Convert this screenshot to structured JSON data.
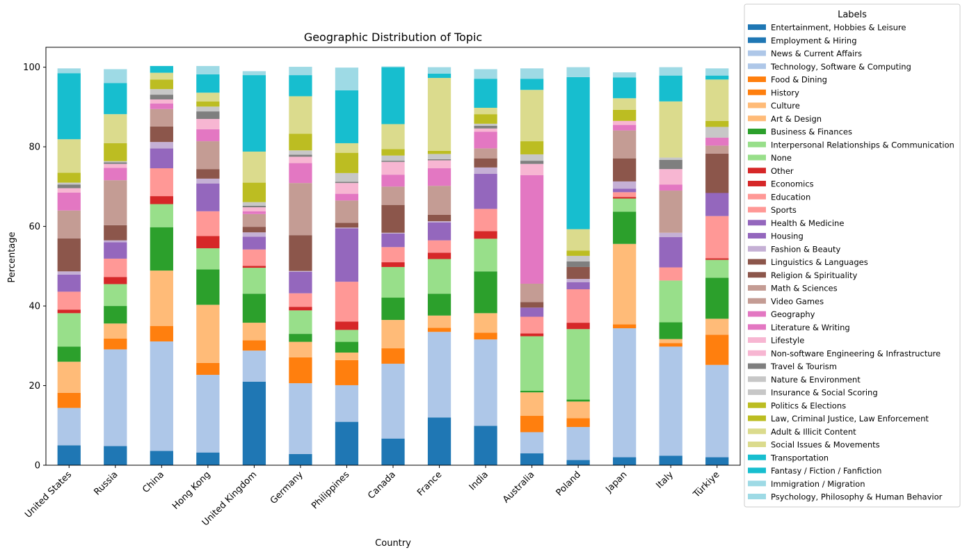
{
  "chart_data": {
    "type": "bar",
    "stacked": true,
    "title": "Geographic Distribution of Topic",
    "xlabel": "Country",
    "ylabel": "Percentage",
    "ylim": [
      0,
      105
    ],
    "yticks": [
      0,
      20,
      40,
      60,
      80,
      100
    ],
    "grid": false,
    "legend_title": "Labels",
    "legend_position": "outside-right",
    "categories": [
      "United States",
      "Russia",
      "China",
      "Hong Kong",
      "United Kingdom",
      "Germany",
      "Philippines",
      "Canada",
      "France",
      "India",
      "Australia",
      "Poland",
      "Japan",
      "Italy",
      "Türkiye"
    ],
    "series": [
      {
        "name": "Entertainment, Hobbies & Leisure",
        "color": "#1f77b4",
        "values": [
          5.0,
          4.8,
          3.6,
          3.2,
          21.0,
          2.8,
          10.9,
          6.7,
          12.0,
          9.9,
          3.0,
          1.3,
          2.0,
          2.4,
          2.0
        ]
      },
      {
        "name": "Employment & Hiring",
        "color": "#1f77b4",
        "values": [
          0,
          0,
          0,
          0,
          0,
          0,
          0,
          0,
          0,
          0,
          0,
          0,
          0,
          0,
          0
        ]
      },
      {
        "name": "News & Current Affairs",
        "color": "#aec7e8",
        "values": [
          9.4,
          24.3,
          27.5,
          19.5,
          7.8,
          17.8,
          9.2,
          18.8,
          21.5,
          21.7,
          5.3,
          8.3,
          32.4,
          27.4,
          23.2
        ]
      },
      {
        "name": "Technology, Software & Computing",
        "color": "#aec7e8",
        "values": [
          0,
          0,
          0,
          0,
          0,
          0,
          0,
          0,
          0,
          0,
          0,
          0,
          0,
          0,
          0
        ]
      },
      {
        "name": "Food & Dining",
        "color": "#ff7f0e",
        "values": [
          3.8,
          2.7,
          3.9,
          3.0,
          2.6,
          6.5,
          6.3,
          3.9,
          1.0,
          1.7,
          4.1,
          2.2,
          1.0,
          0.9,
          7.6
        ]
      },
      {
        "name": "History",
        "color": "#ff7f0e",
        "values": [
          0,
          0,
          0,
          0,
          0,
          0,
          0,
          0,
          0,
          0,
          0,
          0,
          0,
          0,
          0
        ]
      },
      {
        "name": "Culture",
        "color": "#ffbb78",
        "values": [
          7.8,
          3.8,
          13.9,
          14.6,
          4.4,
          3.9,
          1.9,
          7.1,
          3.1,
          4.9,
          5.9,
          4.2,
          20.2,
          1.0,
          4.0
        ]
      },
      {
        "name": "Art & Design",
        "color": "#ffbb78",
        "values": [
          0,
          0,
          0,
          0,
          0,
          0,
          0,
          0,
          0,
          0,
          0,
          0,
          0,
          0,
          0
        ]
      },
      {
        "name": "Business & Finances",
        "color": "#2ca02c",
        "values": [
          3.8,
          4.4,
          10.9,
          8.9,
          7.3,
          2.0,
          2.7,
          5.6,
          5.5,
          10.5,
          0.4,
          0.5,
          8.1,
          4.2,
          10.3
        ]
      },
      {
        "name": "Interpersonal Relationships & Communication",
        "color": "#98df8a",
        "values": [
          8.4,
          5.5,
          5.8,
          5.3,
          6.5,
          5.9,
          3.0,
          7.7,
          8.7,
          8.2,
          13.7,
          17.7,
          3.3,
          10.5,
          4.5
        ]
      },
      {
        "name": "None",
        "color": "#98df8a",
        "values": [
          0,
          0,
          0,
          0,
          0,
          0,
          0,
          0,
          0,
          0,
          0,
          0,
          0,
          0,
          0
        ]
      },
      {
        "name": "Other",
        "color": "#d62728",
        "values": [
          0.9,
          1.8,
          2.0,
          3.1,
          0.5,
          0.9,
          2.1,
          1.2,
          1.6,
          1.9,
          0.7,
          1.6,
          0.4,
          0,
          0.4
        ]
      },
      {
        "name": "Economics",
        "color": "#d62728",
        "values": [
          0,
          0,
          0,
          0,
          0,
          0,
          0,
          0,
          0,
          0,
          0,
          0,
          0,
          0,
          0
        ]
      },
      {
        "name": "Education",
        "color": "#ff9896",
        "values": [
          4.5,
          4.6,
          7.0,
          6.2,
          4.1,
          3.4,
          10.0,
          3.8,
          3.1,
          5.6,
          4.2,
          8.4,
          1.2,
          3.3,
          10.6
        ]
      },
      {
        "name": "Sports",
        "color": "#ff9896",
        "values": [
          0,
          0,
          0,
          0,
          0,
          0,
          0,
          0,
          0,
          0,
          0,
          0,
          0,
          0,
          0
        ]
      },
      {
        "name": "Health & Medicine",
        "color": "#9467bd",
        "values": [
          4.3,
          4.1,
          5.0,
          7.0,
          3.2,
          5.4,
          13.4,
          3.4,
          4.5,
          8.8,
          2.3,
          1.8,
          0.9,
          7.6,
          5.8
        ]
      },
      {
        "name": "Housing",
        "color": "#9467bd",
        "values": [
          0,
          0,
          0,
          0,
          0,
          0,
          0,
          0,
          0,
          0,
          0,
          0,
          0,
          0,
          0
        ]
      },
      {
        "name": "Fashion & Beauty",
        "color": "#c5b0d5",
        "values": [
          0.8,
          0.5,
          1.6,
          1.2,
          1.1,
          0.2,
          0.2,
          0.2,
          0.3,
          1.6,
          0,
          0.8,
          1.8,
          1.1,
          0
        ]
      },
      {
        "name": "Linguistics & Languages",
        "color": "#8c564b",
        "values": [
          8.3,
          3.8,
          3.9,
          2.4,
          1.4,
          9.0,
          1.2,
          7.0,
          1.6,
          2.3,
          1.4,
          3.0,
          5.8,
          0,
          9.9
        ]
      },
      {
        "name": "Religion & Spirituality",
        "color": "#8c564b",
        "values": [
          0,
          0,
          0,
          0,
          0,
          0,
          0,
          0,
          0,
          0,
          0,
          0,
          0,
          0,
          0
        ]
      },
      {
        "name": "Math & Sciences",
        "color": "#c49c94",
        "values": [
          7.0,
          11.3,
          4.4,
          7.0,
          3.2,
          13.1,
          5.6,
          4.6,
          7.3,
          2.5,
          4.6,
          0,
          7.0,
          10.6,
          2.0
        ]
      },
      {
        "name": "Video Games",
        "color": "#c49c94",
        "values": [
          0,
          0,
          0,
          0,
          0,
          0,
          0,
          0,
          0,
          0,
          0,
          0,
          0,
          0,
          0
        ]
      },
      {
        "name": "Geography",
        "color": "#e377c2",
        "values": [
          4.5,
          3.1,
          1.4,
          3.0,
          0.7,
          5.0,
          1.7,
          3.0,
          4.4,
          4.2,
          27.3,
          0,
          1.4,
          1.5,
          2.0
        ]
      },
      {
        "name": "Literature & Writing",
        "color": "#e377c2",
        "values": [
          0,
          0,
          0,
          0,
          0,
          0,
          0,
          0,
          0,
          0,
          0,
          0,
          0,
          0,
          0
        ]
      },
      {
        "name": "Lifestyle",
        "color": "#f7b6d2",
        "values": [
          1.1,
          1.0,
          1.0,
          2.6,
          1.0,
          1.6,
          2.7,
          3.2,
          2.0,
          0.8,
          2.8,
          0,
          1.0,
          3.9,
          0
        ]
      },
      {
        "name": "Non-software Engineering & Infrastructure",
        "color": "#f7b6d2",
        "values": [
          0,
          0,
          0,
          0,
          0,
          0,
          0,
          0,
          0,
          0,
          0,
          0,
          0,
          0,
          0
        ]
      },
      {
        "name": "Travel & Tourism",
        "color": "#7f7f7f",
        "values": [
          0.9,
          0.4,
          1.2,
          1.9,
          0.4,
          0.5,
          0.3,
          0.3,
          0.3,
          0.7,
          0.8,
          1.4,
          0,
          2.3,
          0
        ]
      },
      {
        "name": "Nature & Environment",
        "color": "#c7c7c7",
        "values": [
          0.5,
          0.3,
          1.4,
          1.2,
          0.9,
          1.1,
          2.2,
          1.3,
          1.3,
          0.5,
          1.6,
          1.4,
          0,
          0.6,
          2.7
        ]
      },
      {
        "name": "Insurance & Social Scoring",
        "color": "#c7c7c7",
        "values": [
          0,
          0,
          0,
          0,
          0,
          0,
          0,
          0,
          0,
          0,
          0,
          0,
          0,
          0,
          0
        ]
      },
      {
        "name": "Politics & Elections",
        "color": "#bcbd22",
        "values": [
          2.5,
          4.5,
          2.4,
          1.3,
          4.9,
          4.2,
          5.1,
          1.6,
          0.8,
          2.4,
          3.3,
          1.3,
          2.8,
          0,
          1.5
        ]
      },
      {
        "name": "Law, Criminal Justice, Law Enforcement",
        "color": "#bcbd22",
        "values": [
          0,
          0,
          0,
          0,
          0,
          0,
          0,
          0,
          0,
          0,
          0,
          0,
          0,
          0,
          0
        ]
      },
      {
        "name": "Adult & Illicit Content",
        "color": "#dbdb8d",
        "values": [
          8.4,
          7.3,
          1.7,
          2.2,
          7.8,
          9.4,
          2.4,
          6.3,
          18.3,
          1.6,
          12.9,
          5.4,
          2.9,
          14.1,
          10.4
        ]
      },
      {
        "name": "Social Issues & Movements",
        "color": "#dbdb8d",
        "values": [
          0,
          0,
          0,
          0,
          0,
          0,
          0,
          0,
          0,
          0,
          0,
          0,
          0,
          0,
          0
        ]
      },
      {
        "name": "Transportation",
        "color": "#17becf",
        "values": [
          16.6,
          7.8,
          1.7,
          4.6,
          19.2,
          5.3,
          13.3,
          14.3,
          1.1,
          7.3,
          2.8,
          38.2,
          5.2,
          6.5,
          1.0
        ]
      },
      {
        "name": "Fantasy / Fiction / Fanfiction",
        "color": "#17becf",
        "values": [
          0,
          0,
          0,
          0,
          0,
          0,
          0,
          0,
          0,
          0,
          0,
          0,
          0,
          0,
          0
        ]
      },
      {
        "name": "Immigration / Migration",
        "color": "#9edae5",
        "values": [
          1.2,
          3.5,
          0,
          2.1,
          1.0,
          2.1,
          5.7,
          0.2,
          1.6,
          2.4,
          2.6,
          2.5,
          1.3,
          2.1,
          1.8
        ]
      },
      {
        "name": "Psychology, Philosophy & Human Behavior",
        "color": "#9edae5",
        "values": [
          0,
          0,
          0,
          0,
          0,
          0,
          0,
          0,
          0,
          0,
          0,
          0,
          0,
          0,
          0
        ]
      }
    ]
  }
}
